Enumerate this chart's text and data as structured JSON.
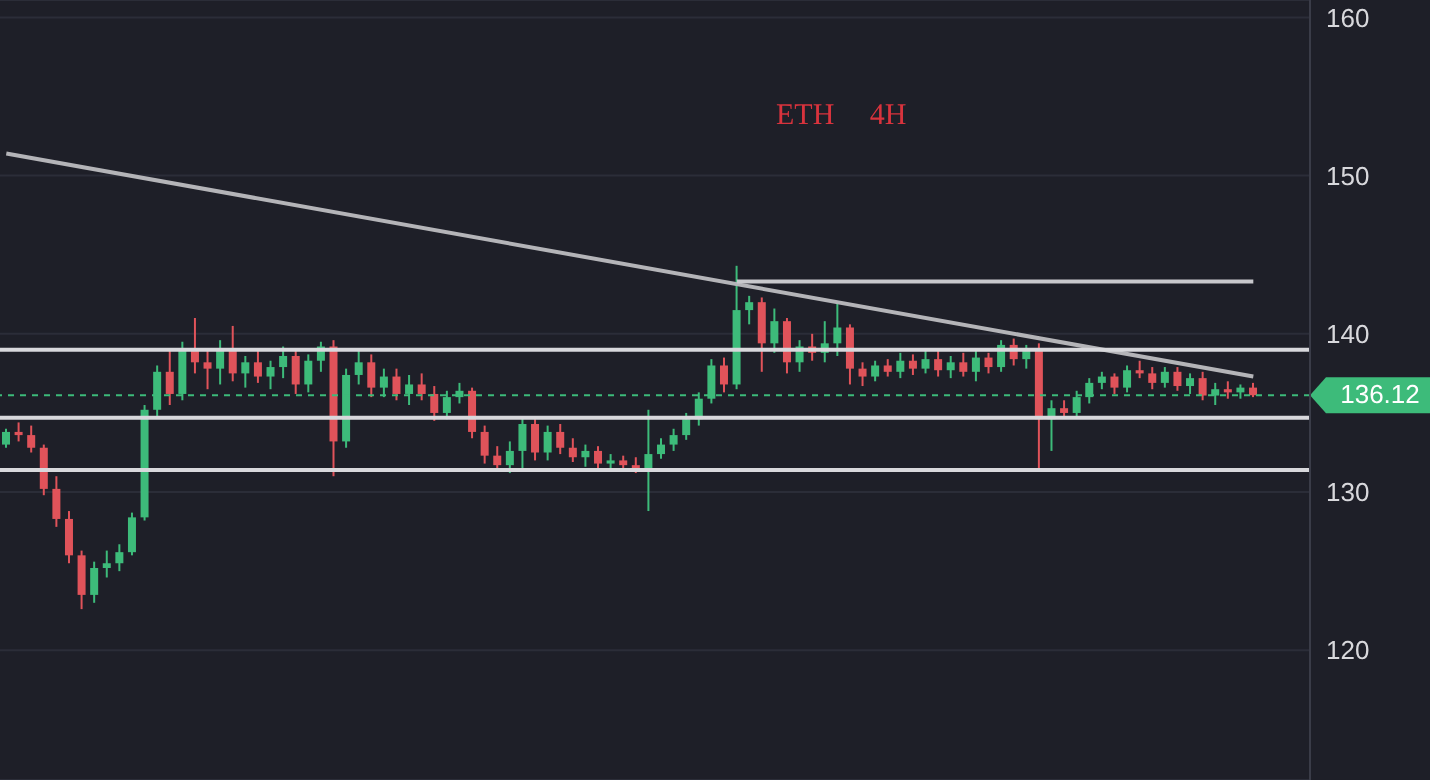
{
  "chart_data": {
    "type": "candlestick",
    "title": "ETH 4H",
    "categories": [
      null,
      null,
      null,
      null,
      null,
      null,
      null,
      null,
      null,
      null,
      null,
      null,
      null,
      null,
      null,
      null,
      null,
      null,
      null,
      null,
      null,
      null,
      null,
      null,
      null,
      null,
      null,
      null,
      null,
      null,
      null,
      null,
      null,
      null,
      null,
      null,
      null,
      null,
      null,
      null,
      null,
      null,
      null,
      null,
      null,
      null,
      null,
      null,
      null,
      null,
      null,
      null,
      null,
      null,
      null,
      null,
      null,
      null,
      null,
      null,
      null,
      null,
      null,
      null,
      null,
      null,
      null,
      null,
      null,
      null,
      null,
      null,
      null,
      null,
      null,
      null,
      null,
      null,
      null,
      null,
      null,
      null,
      null,
      null,
      null,
      null,
      null,
      null,
      null,
      null,
      null,
      null,
      null,
      null,
      null,
      null,
      null,
      null,
      null,
      null
    ],
    "ohlc": [
      [
        133,
        134,
        132.8,
        133.8
      ],
      [
        133.8,
        134.4,
        133.2,
        133.6
      ],
      [
        133.6,
        134.2,
        132.5,
        132.8
      ],
      [
        132.8,
        133,
        129.8,
        130.2
      ],
      [
        130.2,
        131,
        127.8,
        128.3
      ],
      [
        128.3,
        128.8,
        125.5,
        126
      ],
      [
        126,
        126.3,
        122.6,
        123.5
      ],
      [
        123.5,
        125.6,
        123,
        125.2
      ],
      [
        125.2,
        126.3,
        124.6,
        125.5
      ],
      [
        125.5,
        126.7,
        125,
        126.2
      ],
      [
        126.2,
        128.7,
        126,
        128.4
      ],
      [
        128.4,
        135.5,
        128.2,
        135.2
      ],
      [
        135.2,
        138,
        134.8,
        137.6
      ],
      [
        137.6,
        139,
        135.5,
        136.2
      ],
      [
        136.2,
        139.5,
        135.8,
        139
      ],
      [
        139,
        141,
        137.5,
        138.2
      ],
      [
        138.2,
        139,
        136.5,
        137.8
      ],
      [
        137.8,
        139.6,
        136.8,
        139.1
      ],
      [
        139.1,
        140.5,
        137,
        137.5
      ],
      [
        137.5,
        138.6,
        136.6,
        138.2
      ],
      [
        138.2,
        139,
        136.9,
        137.3
      ],
      [
        137.3,
        138.3,
        136.5,
        137.9
      ],
      [
        137.9,
        139.2,
        137.2,
        138.6
      ],
      [
        138.6,
        139,
        136.2,
        136.8
      ],
      [
        136.8,
        138.7,
        136.3,
        138.3
      ],
      [
        138.3,
        139.5,
        137.6,
        139.2
      ],
      [
        139.2,
        139.6,
        131,
        133.2
      ],
      [
        133.2,
        137.8,
        132.8,
        137.4
      ],
      [
        137.4,
        139,
        136.8,
        138.2
      ],
      [
        138.2,
        138.7,
        136,
        136.6
      ],
      [
        136.6,
        137.8,
        136,
        137.3
      ],
      [
        137.3,
        137.8,
        135.8,
        136.2
      ],
      [
        136.2,
        137.4,
        135.5,
        136.8
      ],
      [
        136.8,
        137.5,
        135.8,
        136.2
      ],
      [
        136.2,
        136.7,
        134.5,
        135
      ],
      [
        135,
        136.4,
        134.6,
        136
      ],
      [
        136,
        136.9,
        135.6,
        136.4
      ],
      [
        136.4,
        136.6,
        133.4,
        133.8
      ],
      [
        133.8,
        134.2,
        131.8,
        132.3
      ],
      [
        132.3,
        132.9,
        131.3,
        131.7
      ],
      [
        131.7,
        133.2,
        131.2,
        132.6
      ],
      [
        132.6,
        134.8,
        131.5,
        134.3
      ],
      [
        134.3,
        134.6,
        132,
        132.5
      ],
      [
        132.5,
        134.2,
        132,
        133.8
      ],
      [
        133.8,
        134.3,
        132.4,
        132.8
      ],
      [
        132.8,
        133.4,
        131.9,
        132.2
      ],
      [
        132.2,
        133,
        131.6,
        132.6
      ],
      [
        132.6,
        132.9,
        131.5,
        131.8
      ],
      [
        131.8,
        132.4,
        131.3,
        132
      ],
      [
        132,
        132.3,
        131.4,
        131.7
      ],
      [
        131.7,
        132.2,
        131.2,
        131.5
      ],
      [
        131.5,
        135.2,
        128.8,
        132.4
      ],
      [
        132.4,
        133.4,
        132.1,
        133
      ],
      [
        133,
        134,
        132.6,
        133.6
      ],
      [
        133.6,
        135,
        133.3,
        134.6
      ],
      [
        134.6,
        136.3,
        134.2,
        135.9
      ],
      [
        135.9,
        138.4,
        135.6,
        138
      ],
      [
        138,
        138.5,
        136.3,
        136.8
      ],
      [
        136.8,
        144.3,
        136.5,
        141.5
      ],
      [
        141.5,
        142.4,
        140.6,
        142
      ],
      [
        142,
        142.3,
        137.6,
        139.4
      ],
      [
        139.4,
        141.6,
        138.8,
        140.8
      ],
      [
        140.8,
        141,
        137.5,
        138.2
      ],
      [
        138.2,
        139.6,
        137.6,
        139.2
      ],
      [
        139.2,
        140,
        138.3,
        138.8
      ],
      [
        138.8,
        140.8,
        138.2,
        139.4
      ],
      [
        139.4,
        142,
        138.6,
        140.4
      ],
      [
        140.4,
        140.6,
        136.8,
        137.8
      ],
      [
        137.8,
        138.2,
        136.7,
        137.3
      ],
      [
        137.3,
        138.3,
        137,
        138
      ],
      [
        138,
        138.4,
        137.3,
        137.6
      ],
      [
        137.6,
        138.8,
        137.2,
        138.3
      ],
      [
        138.3,
        138.7,
        137.4,
        137.8
      ],
      [
        137.8,
        139,
        137.5,
        138.4
      ],
      [
        138.4,
        139,
        137.3,
        137.7
      ],
      [
        137.7,
        138.6,
        137.2,
        138.2
      ],
      [
        138.2,
        138.8,
        137.3,
        137.6
      ],
      [
        137.6,
        139,
        137,
        138.5
      ],
      [
        138.5,
        138.8,
        137.5,
        137.9
      ],
      [
        137.9,
        139.6,
        137.6,
        139.3
      ],
      [
        139.3,
        139.7,
        138,
        138.4
      ],
      [
        138.4,
        139.3,
        137.8,
        139
      ],
      [
        139,
        139.4,
        131.4,
        134.6
      ],
      [
        134.6,
        135.8,
        132.6,
        135.3
      ],
      [
        135.3,
        135.8,
        134.7,
        135
      ],
      [
        135,
        136.4,
        134.8,
        136
      ],
      [
        136,
        137.2,
        135.6,
        136.9
      ],
      [
        136.9,
        137.6,
        136.5,
        137.3
      ],
      [
        137.3,
        137.5,
        136.2,
        136.6
      ],
      [
        136.6,
        138,
        136.3,
        137.7
      ],
      [
        137.7,
        138.3,
        137.2,
        137.5
      ],
      [
        137.5,
        137.9,
        136.5,
        136.9
      ],
      [
        136.9,
        137.9,
        136.6,
        137.6
      ],
      [
        137.6,
        137.9,
        136.4,
        136.7
      ],
      [
        136.7,
        137.5,
        136.2,
        137.2
      ],
      [
        137.2,
        137.6,
        135.8,
        136.1
      ],
      [
        136.1,
        136.9,
        135.5,
        136.5
      ],
      [
        136.5,
        137,
        135.9,
        136.3
      ],
      [
        136.3,
        136.8,
        135.9,
        136.6
      ],
      [
        136.6,
        136.9,
        136,
        136.12
      ]
    ],
    "series": [
      {
        "type": "line",
        "color": "#b4b4b8",
        "values": [
          151.4,
          null,
          null,
          null,
          null,
          null,
          null,
          null,
          null,
          null,
          null,
          null,
          null,
          null,
          null,
          null,
          null,
          null,
          null,
          null,
          null,
          null,
          null,
          null,
          null,
          null,
          null,
          null,
          null,
          null,
          null,
          null,
          null,
          null,
          null,
          null,
          null,
          null,
          null,
          null,
          null,
          null,
          null,
          null,
          null,
          null,
          null,
          null,
          null,
          null,
          null,
          null,
          null,
          null,
          null,
          null,
          null,
          null,
          null,
          null,
          null,
          null,
          null,
          null,
          null,
          null,
          null,
          null,
          null,
          null,
          null,
          null,
          null,
          null,
          null,
          null,
          null,
          null,
          null,
          null,
          null,
          null,
          null,
          null,
          null,
          null,
          null,
          null,
          null,
          null,
          null,
          null,
          null,
          null,
          null,
          null,
          null,
          null,
          null,
          137.3
        ]
      },
      {
        "type": "line",
        "color": "#c8c8cc",
        "values": [
          null,
          null,
          null,
          null,
          null,
          null,
          null,
          null,
          null,
          null,
          null,
          null,
          null,
          null,
          null,
          null,
          null,
          null,
          null,
          null,
          null,
          null,
          null,
          null,
          null,
          null,
          null,
          null,
          null,
          null,
          null,
          null,
          null,
          null,
          null,
          null,
          null,
          null,
          null,
          null,
          null,
          null,
          null,
          null,
          null,
          null,
          null,
          null,
          null,
          null,
          null,
          null,
          null,
          null,
          null,
          null,
          null,
          null,
          143.3,
          null,
          null,
          null,
          null,
          null,
          null,
          null,
          null,
          null,
          null,
          null,
          null,
          null,
          null,
          null,
          null,
          null,
          null,
          null,
          null,
          null,
          null,
          null,
          null,
          null,
          null,
          null,
          null,
          null,
          null,
          null,
          null,
          null,
          null,
          null,
          null,
          null,
          null,
          null,
          null,
          143.3
        ]
      }
    ],
    "ref_lines": [
      {
        "axis": "y",
        "value": 139,
        "label": null,
        "color": "#d8d8dc"
      },
      {
        "axis": "y",
        "value": 134.7,
        "label": null,
        "color": "#d8d8dc"
      },
      {
        "axis": "y",
        "value": 131.4,
        "label": null,
        "color": "#d8d8dc"
      },
      {
        "axis": "y",
        "value": 136.12,
        "label": "136.12",
        "color": "#3dbb7a",
        "line_style": "dashed"
      }
    ],
    "ylim": [
      111.8,
      161.1
    ],
    "yticks": [
      120,
      130,
      140,
      150,
      160
    ],
    "grid": "y",
    "tick_labels": "y"
  }
}
